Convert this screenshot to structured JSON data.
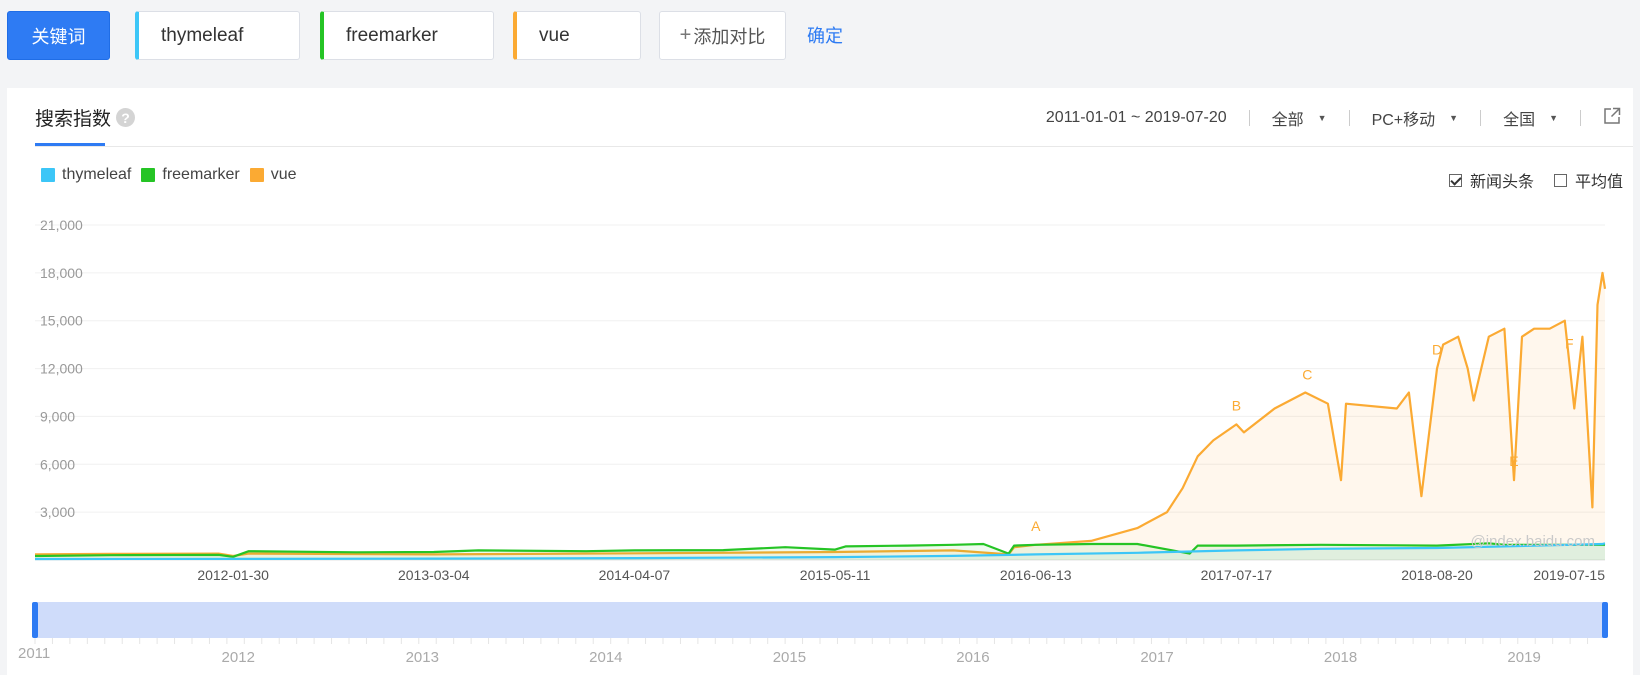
{
  "keywords": {
    "label": "关键词",
    "items": [
      {
        "text": "thymeleaf",
        "color": "#3cc6f7"
      },
      {
        "text": "freemarker",
        "color": "#25c425"
      },
      {
        "text": "vue",
        "color": "#fbaa33"
      }
    ],
    "add_label": "添加对比",
    "confirm_label": "确定"
  },
  "panel": {
    "title": "搜索指数",
    "date_range": "2011-01-01 ~ 2019-07-20",
    "filter_source": "全部",
    "filter_device": "PC+移动",
    "filter_region": "全国",
    "option_news": "新闻头条",
    "option_news_checked": true,
    "option_avg": "平均值",
    "option_avg_checked": false,
    "watermark": "@index.baidu.com"
  },
  "chart_data": {
    "type": "area",
    "legend": [
      "thymeleaf",
      "freemarker",
      "vue"
    ],
    "y_ticks": [
      "3,000",
      "6,000",
      "9,000",
      "12,000",
      "15,000",
      "18,000",
      "21,000"
    ],
    "ylim": [
      0,
      21000
    ],
    "x_ticks": [
      "2012-01-30",
      "2013-03-04",
      "2014-04-07",
      "2015-05-11",
      "2016-06-13",
      "2017-07-17",
      "2018-08-20",
      "2019-07-15"
    ],
    "x_range": [
      "2011-01-01",
      "2019-07-20"
    ],
    "series": [
      {
        "name": "thymeleaf",
        "color": "#3cc6f7",
        "points": [
          [
            "2011-01-01",
            60
          ],
          [
            "2012-01-30",
            70
          ],
          [
            "2013-03-04",
            90
          ],
          [
            "2014-04-07",
            120
          ],
          [
            "2015-05-11",
            180
          ],
          [
            "2016-01-01",
            260
          ],
          [
            "2016-06-13",
            350
          ],
          [
            "2017-01-01",
            450
          ],
          [
            "2017-07-17",
            600
          ],
          [
            "2018-01-01",
            700
          ],
          [
            "2018-08-20",
            750
          ],
          [
            "2019-01-01",
            850
          ],
          [
            "2019-07-15",
            1000
          ],
          [
            "2019-07-20",
            1050
          ]
        ]
      },
      {
        "name": "freemarker",
        "color": "#25c425",
        "points": [
          [
            "2011-01-01",
            250
          ],
          [
            "2011-06-01",
            300
          ],
          [
            "2012-01-01",
            320
          ],
          [
            "2012-01-30",
            200
          ],
          [
            "2012-03-01",
            550
          ],
          [
            "2012-10-01",
            480
          ],
          [
            "2013-03-04",
            500
          ],
          [
            "2013-06-01",
            600
          ],
          [
            "2014-01-01",
            550
          ],
          [
            "2014-04-07",
            600
          ],
          [
            "2014-10-01",
            620
          ],
          [
            "2015-02-01",
            800
          ],
          [
            "2015-05-11",
            650
          ],
          [
            "2015-06-01",
            850
          ],
          [
            "2015-10-01",
            900
          ],
          [
            "2016-01-01",
            950
          ],
          [
            "2016-03-01",
            1000
          ],
          [
            "2016-04-20",
            400
          ],
          [
            "2016-05-01",
            900
          ],
          [
            "2016-06-13",
            950
          ],
          [
            "2016-10-01",
            1000
          ],
          [
            "2017-01-01",
            1000
          ],
          [
            "2017-04-15",
            400
          ],
          [
            "2017-05-01",
            900
          ],
          [
            "2017-07-17",
            900
          ],
          [
            "2018-01-01",
            950
          ],
          [
            "2018-08-20",
            900
          ],
          [
            "2018-12-01",
            1050
          ],
          [
            "2019-01-01",
            950
          ],
          [
            "2019-07-15",
            950
          ],
          [
            "2019-07-20",
            950
          ]
        ]
      },
      {
        "name": "vue",
        "color": "#fbaa33",
        "points": [
          [
            "2011-01-01",
            350
          ],
          [
            "2011-06-01",
            380
          ],
          [
            "2012-01-01",
            400
          ],
          [
            "2012-01-30",
            250
          ],
          [
            "2012-03-01",
            400
          ],
          [
            "2013-03-04",
            350
          ],
          [
            "2014-04-07",
            420
          ],
          [
            "2015-05-11",
            500
          ],
          [
            "2016-01-01",
            600
          ],
          [
            "2016-04-20",
            350
          ],
          [
            "2016-05-01",
            800
          ],
          [
            "2016-06-13",
            950
          ],
          [
            "2016-10-01",
            1200
          ],
          [
            "2017-01-01",
            2000
          ],
          [
            "2017-03-01",
            3000
          ],
          [
            "2017-04-01",
            4500
          ],
          [
            "2017-05-01",
            6500
          ],
          [
            "2017-06-01",
            7500
          ],
          [
            "2017-07-17",
            8500
          ],
          [
            "2017-08-01",
            8000
          ],
          [
            "2017-10-01",
            9500
          ],
          [
            "2017-12-01",
            10500
          ],
          [
            "2018-01-15",
            9800
          ],
          [
            "2018-02-10",
            5000
          ],
          [
            "2018-02-20",
            9800
          ],
          [
            "2018-06-01",
            9500
          ],
          [
            "2018-06-25",
            10500
          ],
          [
            "2018-07-20",
            4000
          ],
          [
            "2018-08-20",
            12000
          ],
          [
            "2018-09-01",
            13500
          ],
          [
            "2018-10-01",
            14000
          ],
          [
            "2018-10-20",
            12000
          ],
          [
            "2018-11-01",
            10000
          ],
          [
            "2018-12-01",
            14000
          ],
          [
            "2019-01-01",
            14500
          ],
          [
            "2019-01-20",
            5000
          ],
          [
            "2019-02-05",
            14000
          ],
          [
            "2019-03-01",
            14500
          ],
          [
            "2019-04-01",
            14500
          ],
          [
            "2019-05-01",
            15000
          ],
          [
            "2019-05-20",
            9500
          ],
          [
            "2019-06-05",
            14000
          ],
          [
            "2019-06-25",
            3300
          ],
          [
            "2019-07-05",
            16000
          ],
          [
            "2019-07-15",
            18000
          ],
          [
            "2019-07-20",
            17000
          ]
        ]
      }
    ],
    "annotations": [
      {
        "label": "A",
        "x": "2016-06-13"
      },
      {
        "label": "B",
        "x": "2017-07-17"
      },
      {
        "label": "C",
        "x": "2017-12-05"
      },
      {
        "label": "D",
        "x": "2018-08-20"
      },
      {
        "label": "E",
        "x": "2019-01-20"
      },
      {
        "label": "F",
        "x": "2019-05-10"
      }
    ],
    "navigator": {
      "years": [
        "2011",
        "2012",
        "2013",
        "2014",
        "2015",
        "2016",
        "2017",
        "2018",
        "2019"
      ]
    }
  }
}
